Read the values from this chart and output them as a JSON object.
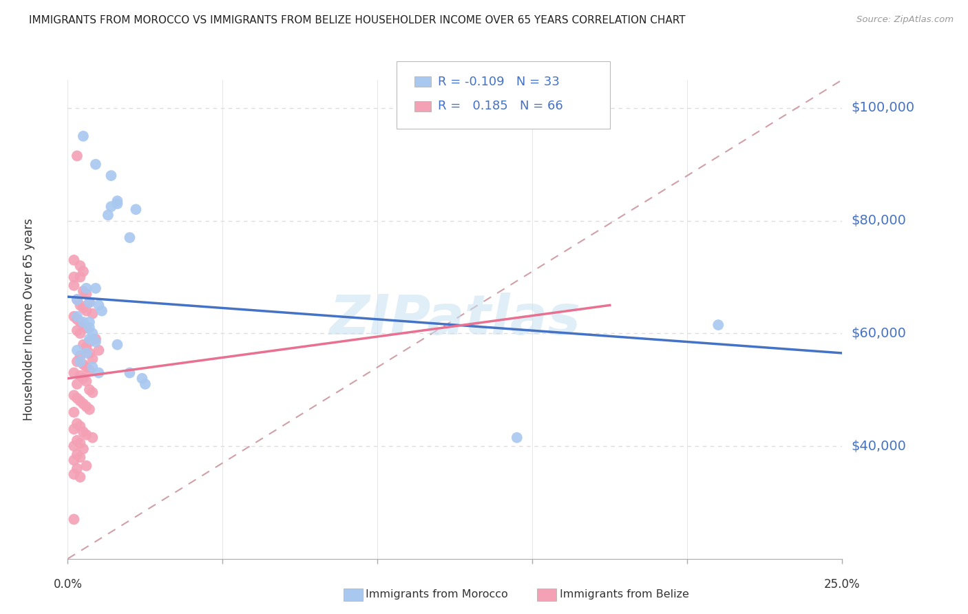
{
  "title": "IMMIGRANTS FROM MOROCCO VS IMMIGRANTS FROM BELIZE HOUSEHOLDER INCOME OVER 65 YEARS CORRELATION CHART",
  "source": "Source: ZipAtlas.com",
  "ylabel": "Householder Income Over 65 years",
  "xlim": [
    0.0,
    0.25
  ],
  "ylim": [
    20000,
    105000
  ],
  "yticks": [
    40000,
    60000,
    80000,
    100000
  ],
  "ytick_labels": [
    "$40,000",
    "$60,000",
    "$80,000",
    "$100,000"
  ],
  "xticks": [
    0.0,
    0.05,
    0.1,
    0.15,
    0.2,
    0.25
  ],
  "watermark": "ZIPatlas",
  "legend_R_morocco": "-0.109",
  "legend_N_morocco": "33",
  "legend_R_belize": "0.185",
  "legend_N_belize": "66",
  "morocco_color": "#A8C8F0",
  "belize_color": "#F4A0B5",
  "morocco_line_color": "#4472C4",
  "belize_line_color": "#E87090",
  "diagonal_color": "#D0A0A8",
  "morocco_line": [
    [
      0.0,
      66500
    ],
    [
      0.25,
      56500
    ]
  ],
  "belize_line": [
    [
      0.0,
      52000
    ],
    [
      0.175,
      65000
    ]
  ],
  "diagonal_line": [
    [
      0.0,
      20000
    ],
    [
      0.25,
      105000
    ]
  ],
  "morocco_scatter": [
    [
      0.005,
      95000
    ],
    [
      0.009,
      90000
    ],
    [
      0.014,
      88000
    ],
    [
      0.016,
      83000
    ],
    [
      0.013,
      81000
    ],
    [
      0.02,
      77000
    ],
    [
      0.016,
      83500
    ],
    [
      0.022,
      82000
    ],
    [
      0.006,
      68000
    ],
    [
      0.009,
      68000
    ],
    [
      0.014,
      82500
    ],
    [
      0.003,
      66000
    ],
    [
      0.007,
      65500
    ],
    [
      0.01,
      65000
    ],
    [
      0.011,
      64000
    ],
    [
      0.003,
      63000
    ],
    [
      0.005,
      62000
    ],
    [
      0.007,
      62000
    ],
    [
      0.007,
      61000
    ],
    [
      0.008,
      60000
    ],
    [
      0.007,
      59000
    ],
    [
      0.009,
      58500
    ],
    [
      0.016,
      58000
    ],
    [
      0.003,
      57000
    ],
    [
      0.006,
      56500
    ],
    [
      0.004,
      55000
    ],
    [
      0.008,
      54000
    ],
    [
      0.01,
      53000
    ],
    [
      0.02,
      53000
    ],
    [
      0.024,
      52000
    ],
    [
      0.025,
      51000
    ],
    [
      0.21,
      61500
    ],
    [
      0.145,
      41500
    ]
  ],
  "belize_scatter": [
    [
      0.003,
      91500
    ],
    [
      0.002,
      73000
    ],
    [
      0.004,
      72000
    ],
    [
      0.005,
      71000
    ],
    [
      0.002,
      70000
    ],
    [
      0.004,
      70000
    ],
    [
      0.002,
      68500
    ],
    [
      0.005,
      67500
    ],
    [
      0.006,
      67000
    ],
    [
      0.003,
      66000
    ],
    [
      0.007,
      65500
    ],
    [
      0.004,
      65000
    ],
    [
      0.005,
      64500
    ],
    [
      0.006,
      64000
    ],
    [
      0.008,
      63500
    ],
    [
      0.002,
      63000
    ],
    [
      0.003,
      62500
    ],
    [
      0.004,
      62000
    ],
    [
      0.005,
      61500
    ],
    [
      0.006,
      61000
    ],
    [
      0.003,
      60500
    ],
    [
      0.004,
      60000
    ],
    [
      0.009,
      59000
    ],
    [
      0.007,
      58500
    ],
    [
      0.005,
      58000
    ],
    [
      0.006,
      57500
    ],
    [
      0.01,
      57000
    ],
    [
      0.007,
      56500
    ],
    [
      0.004,
      56000
    ],
    [
      0.008,
      55500
    ],
    [
      0.003,
      55000
    ],
    [
      0.005,
      54500
    ],
    [
      0.006,
      54000
    ],
    [
      0.007,
      53500
    ],
    [
      0.002,
      53000
    ],
    [
      0.004,
      52500
    ],
    [
      0.005,
      52000
    ],
    [
      0.006,
      51500
    ],
    [
      0.003,
      51000
    ],
    [
      0.007,
      50000
    ],
    [
      0.008,
      49500
    ],
    [
      0.002,
      49000
    ],
    [
      0.003,
      48500
    ],
    [
      0.004,
      48000
    ],
    [
      0.005,
      47500
    ],
    [
      0.006,
      47000
    ],
    [
      0.007,
      46500
    ],
    [
      0.002,
      46000
    ],
    [
      0.003,
      44000
    ],
    [
      0.004,
      43500
    ],
    [
      0.002,
      43000
    ],
    [
      0.005,
      42500
    ],
    [
      0.006,
      42000
    ],
    [
      0.008,
      41500
    ],
    [
      0.003,
      41000
    ],
    [
      0.004,
      40500
    ],
    [
      0.002,
      40000
    ],
    [
      0.005,
      39500
    ],
    [
      0.003,
      38500
    ],
    [
      0.004,
      38000
    ],
    [
      0.002,
      37500
    ],
    [
      0.006,
      36500
    ],
    [
      0.003,
      36000
    ],
    [
      0.002,
      35000
    ],
    [
      0.004,
      34500
    ],
    [
      0.002,
      27000
    ]
  ],
  "background_color": "#FFFFFF",
  "grid_color": "#DDDDDD"
}
